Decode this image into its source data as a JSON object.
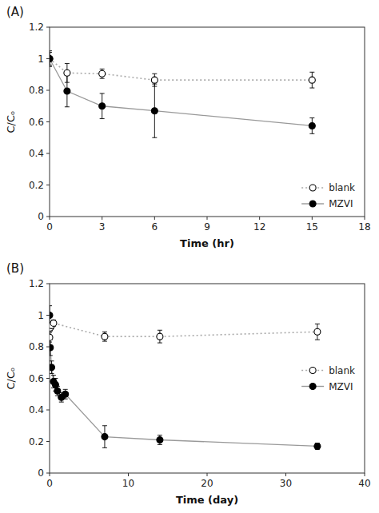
{
  "chart_data": [
    {
      "type": "line",
      "title": "(A)",
      "x_label": "Time (hr)",
      "y_label": "C/Cₒ",
      "xlim": [
        0,
        18
      ],
      "ylim": [
        0,
        1.2
      ],
      "xticks": [
        0,
        3,
        6,
        9,
        12,
        15,
        18
      ],
      "yticks": [
        0,
        0.2,
        0.4,
        0.6,
        0.8,
        1,
        1.2
      ],
      "legend": "lower right",
      "series": [
        {
          "name": "blank",
          "color": "#aaaaaa",
          "marker": "open-circle",
          "line_style": "dotted",
          "x": [
            0,
            1,
            3,
            6,
            15
          ],
          "values": [
            1.0,
            0.91,
            0.905,
            0.865,
            0.865
          ],
          "yerr": [
            0.04,
            0.06,
            0.03,
            0.04,
            0.05
          ]
        },
        {
          "name": "MZVI",
          "color": "#999999",
          "marker": "circle",
          "line_style": "solid",
          "x": [
            0,
            1,
            3,
            6,
            15
          ],
          "values": [
            1.0,
            0.795,
            0.7,
            0.67,
            0.575
          ],
          "yerr": [
            0.05,
            0.1,
            0.08,
            0.17,
            0.05
          ]
        }
      ]
    },
    {
      "type": "line",
      "title": "(B)",
      "x_label": "Time (day)",
      "y_label": "C/Cₒ",
      "xlim": [
        0,
        40
      ],
      "ylim": [
        0,
        1.2
      ],
      "xticks": [
        0,
        10,
        20,
        30,
        40
      ],
      "yticks": [
        0,
        0.2,
        0.4,
        0.6,
        0.8,
        1,
        1.2
      ],
      "legend": "right",
      "series": [
        {
          "name": "blank",
          "color": "#aaaaaa",
          "marker": "open-circle",
          "line_style": "dotted",
          "x": [
            0,
            0.083,
            0.25,
            0.5,
            7,
            14,
            34
          ],
          "values": [
            0.86,
            0.92,
            0.935,
            0.95,
            0.865,
            0.865,
            0.895
          ],
          "yerr": [
            0.03,
            0.02,
            0.02,
            0.02,
            0.03,
            0.04,
            0.05
          ]
        },
        {
          "name": "MZVI",
          "color": "#999999",
          "marker": "circle",
          "line_style": "solid",
          "x": [
            0,
            0.083,
            0.25,
            0.5,
            0.75,
            1.0,
            1.5,
            2.0,
            7,
            14,
            34
          ],
          "values": [
            1.0,
            0.795,
            0.67,
            0.58,
            0.56,
            0.52,
            0.48,
            0.5,
            0.23,
            0.21,
            0.17
          ],
          "yerr": [
            0.06,
            0.05,
            0.04,
            0.04,
            0.04,
            0.03,
            0.03,
            0.03,
            0.07,
            0.03,
            0.02
          ]
        }
      ]
    }
  ]
}
